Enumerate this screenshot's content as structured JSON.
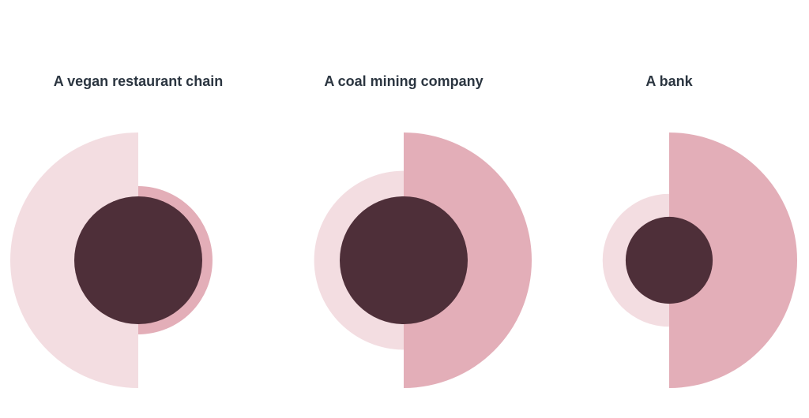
{
  "colors": {
    "left_half": "#f3dde1",
    "right_half": "#e3aeb8",
    "center": "#4e2f39",
    "title": "#2b3540"
  },
  "chart_data": [
    {
      "type": "pie",
      "title": "A vegan restaurant chain",
      "values": {
        "left_half": 1.0,
        "right_half": 0.58,
        "center": 0.5
      }
    },
    {
      "type": "pie",
      "title": "A coal mining company",
      "values": {
        "left_half": 0.7,
        "right_half": 1.0,
        "center": 0.5
      }
    },
    {
      "type": "pie",
      "title": "A bank",
      "values": {
        "left_half": 0.52,
        "right_half": 1.0,
        "center": 0.34
      }
    }
  ]
}
